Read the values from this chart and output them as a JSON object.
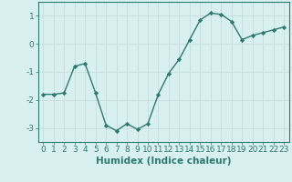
{
  "x": [
    0,
    1,
    2,
    3,
    4,
    5,
    6,
    7,
    8,
    9,
    10,
    11,
    12,
    13,
    14,
    15,
    16,
    17,
    18,
    19,
    20,
    21,
    22,
    23
  ],
  "y": [
    -1.8,
    -1.8,
    -1.75,
    -0.8,
    -0.7,
    -1.75,
    -2.9,
    -3.1,
    -2.85,
    -3.05,
    -2.85,
    -1.8,
    -1.05,
    -0.55,
    0.15,
    0.85,
    1.1,
    1.05,
    0.8,
    0.15,
    0.3,
    0.4,
    0.5,
    0.6
  ],
  "xlabel": "Humidex (Indice chaleur)",
  "xlim": [
    -0.5,
    23.5
  ],
  "ylim": [
    -3.5,
    1.5
  ],
  "yticks": [
    -3,
    -2,
    -1,
    0,
    1
  ],
  "xticks": [
    0,
    1,
    2,
    3,
    4,
    5,
    6,
    7,
    8,
    9,
    10,
    11,
    12,
    13,
    14,
    15,
    16,
    17,
    18,
    19,
    20,
    21,
    22,
    23
  ],
  "line_color": "#2d7a6e",
  "marker_color": "#2d7a6e",
  "bg_color": "#d9f0f0",
  "grid_color": "#c8dede",
  "tick_fontsize": 6.5,
  "xlabel_fontsize": 7.5
}
